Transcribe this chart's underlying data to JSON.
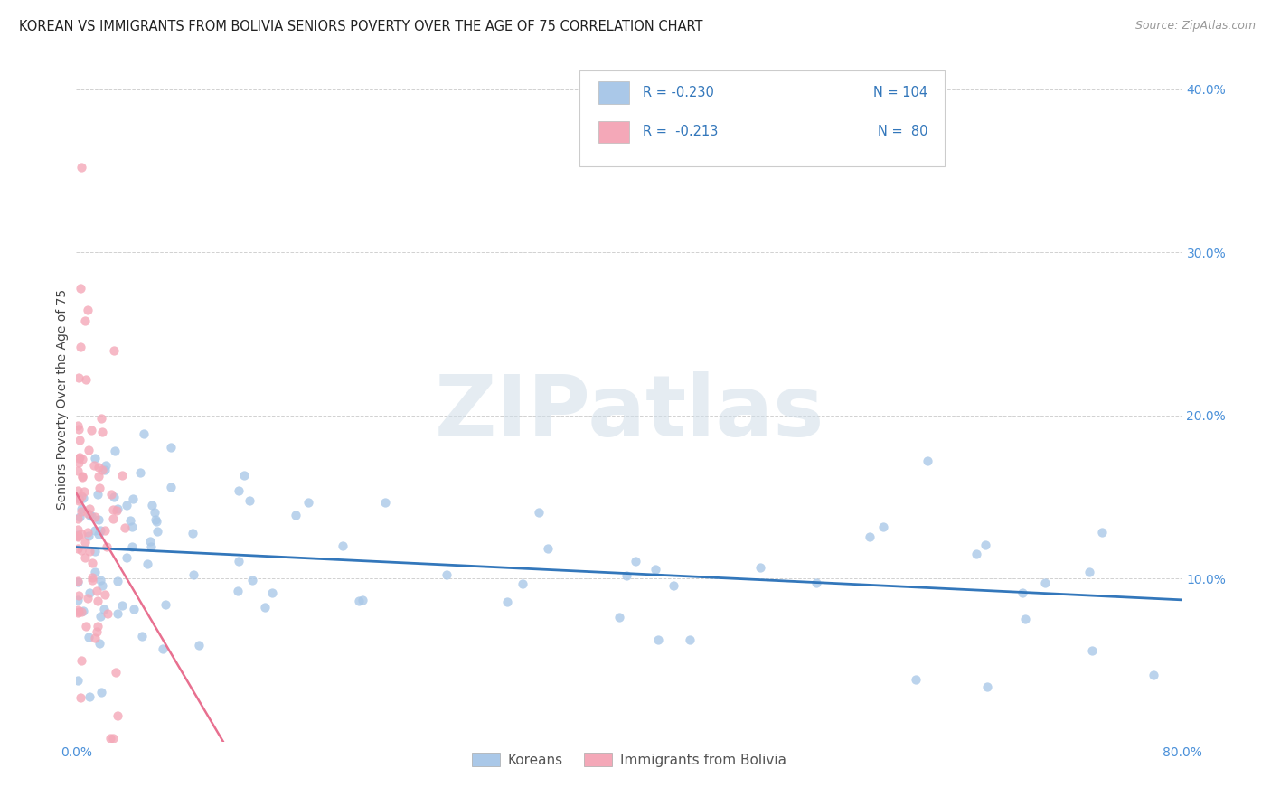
{
  "title": "KOREAN VS IMMIGRANTS FROM BOLIVIA SENIORS POVERTY OVER THE AGE OF 75 CORRELATION CHART",
  "source": "Source: ZipAtlas.com",
  "ylabel": "Seniors Poverty Over the Age of 75",
  "xlim": [
    0.0,
    0.8
  ],
  "ylim": [
    0.0,
    0.42
  ],
  "xticks": [
    0.0,
    0.1,
    0.2,
    0.3,
    0.4,
    0.5,
    0.6,
    0.7,
    0.8
  ],
  "xtick_labels": [
    "0.0%",
    "",
    "",
    "",
    "",
    "",
    "",
    "",
    "80.0%"
  ],
  "yticks": [
    0.0,
    0.1,
    0.2,
    0.3,
    0.4
  ],
  "ytick_labels": [
    "",
    "10.0%",
    "20.0%",
    "30.0%",
    "40.0%"
  ],
  "korean_color": "#aac8e8",
  "bolivia_color": "#f4a8b8",
  "korean_line_color": "#3377bb",
  "bolivia_line_color": "#e87090",
  "watermark_text": "ZIPatlas",
  "legend_labels": [
    "Koreans",
    "Immigrants from Bolivia"
  ],
  "background_color": "#ffffff",
  "grid_color": "#cccccc",
  "title_fontsize": 10.5,
  "ylabel_fontsize": 10,
  "tick_fontsize": 10,
  "source_fontsize": 9,
  "legend_R1": "R = -0.230",
  "legend_N1": "N = 104",
  "legend_R2": "R =  -0.213",
  "legend_N2": "N =  80"
}
